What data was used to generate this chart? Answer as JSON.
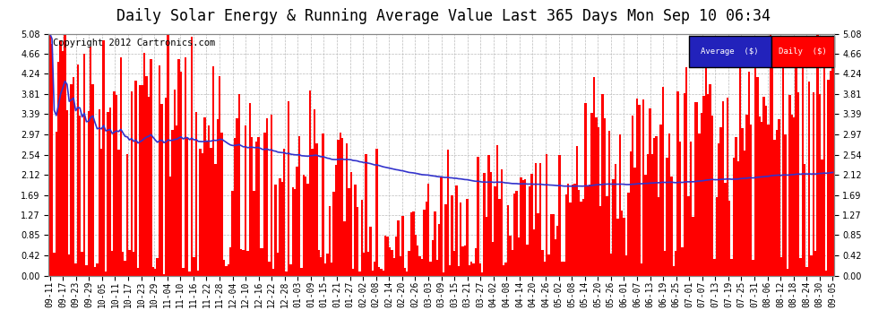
{
  "title": "Daily Solar Energy & Running Average Value Last 365 Days Mon Sep 10 06:34",
  "copyright": "Copyright 2012 Cartronics.com",
  "ylim": [
    0.0,
    5.08
  ],
  "yticks": [
    0.0,
    0.42,
    0.85,
    1.27,
    1.69,
    2.12,
    2.54,
    2.97,
    3.39,
    3.81,
    4.24,
    4.66,
    5.08
  ],
  "bar_color": "#FF0000",
  "avg_color": "#3333CC",
  "bg_color": "#FFFFFF",
  "plot_bg_color": "#FFFFFF",
  "grid_color": "#BBBBBB",
  "legend_avg_bg": "#2222BB",
  "legend_daily_bg": "#FF0000",
  "legend_text_color": "#FFFFFF",
  "title_fontsize": 12,
  "copyright_fontsize": 7.5,
  "tick_fontsize": 7,
  "xtick_labels": [
    "09-11",
    "09-17",
    "09-23",
    "09-29",
    "10-05",
    "10-11",
    "10-17",
    "10-23",
    "10-29",
    "11-04",
    "11-10",
    "11-16",
    "11-22",
    "11-28",
    "12-04",
    "12-10",
    "12-16",
    "12-22",
    "12-28",
    "01-03",
    "01-09",
    "01-15",
    "01-21",
    "01-27",
    "02-02",
    "02-08",
    "02-14",
    "02-20",
    "02-26",
    "03-03",
    "03-09",
    "03-15",
    "03-21",
    "03-27",
    "04-02",
    "04-08",
    "04-14",
    "04-20",
    "04-26",
    "05-02",
    "05-08",
    "05-14",
    "05-20",
    "05-26",
    "06-01",
    "06-07",
    "06-13",
    "06-19",
    "06-25",
    "07-01",
    "07-07",
    "07-13",
    "07-19",
    "07-25",
    "07-31",
    "08-06",
    "08-12",
    "08-18",
    "08-24",
    "08-30",
    "09-05"
  ]
}
